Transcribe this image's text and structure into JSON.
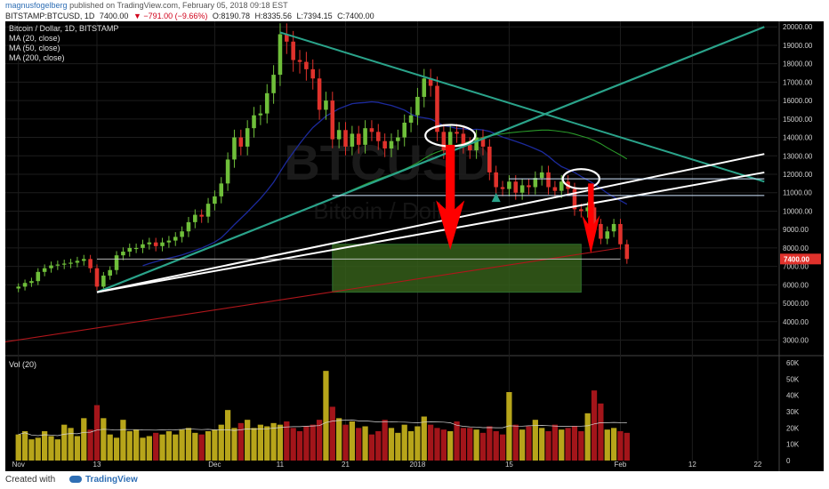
{
  "header": {
    "author": "magnusfogelberg",
    "published": "published on TradingView.com, February 05, 2018 09:18 EST"
  },
  "quote": {
    "symbol": "BITSTAMP:BTCUSD, 1D",
    "last": "7400.00",
    "change": "▼ −791.00 (−9.66%)",
    "o": "O:8190.78",
    "h": "H:8335.56",
    "l": "L:7394.15",
    "c": "C:7400.00"
  },
  "legend": {
    "title": "Bitcoin / Dollar, 1D, BITSTAMP",
    "ma20": "MA (20, close)",
    "ma50": "MA (50, close)",
    "ma200": "MA (200, close)",
    "vol": "Vol (20)"
  },
  "watermark": {
    "symbol": "BTCUSD",
    "name": "Bitcoin / Dollar"
  },
  "footer": {
    "made": "Created with",
    "brand": "TradingView"
  },
  "colors": {
    "background": "#000000",
    "up": "#6fbf3a",
    "down": "#e0322c",
    "vol_up": "#b7a51a",
    "vol_down": "#a3151a",
    "ma20": "#1c2a9c",
    "ma50": "#2a9a2a",
    "ma200": "#b0161b",
    "trendline_teal": "#2aa38a",
    "trendline_white": "#ffffff",
    "target_box": "#355e1a",
    "arrow_red": "#ff0000",
    "price_tag": "#e0322c"
  },
  "chart_data": {
    "type": "candlestick",
    "title": "Bitcoin / Dollar, 1D, BITSTAMP",
    "y_ticks": [
      3000,
      4000,
      5000,
      6000,
      7000,
      8000,
      9000,
      10000,
      11000,
      12000,
      13000,
      14000,
      15000,
      16000,
      17000,
      18000,
      19000,
      20000
    ],
    "ylim": [
      2300,
      20300
    ],
    "x_tick_labels": [
      {
        "label": "Nov",
        "day": 0
      },
      {
        "label": "13",
        "day": 12
      },
      {
        "label": "Dec",
        "day": 30
      },
      {
        "label": "11",
        "day": 40
      },
      {
        "label": "21",
        "day": 50
      },
      {
        "label": "2018",
        "day": 61
      },
      {
        "label": "15",
        "day": 75
      },
      {
        "label": "Feb",
        "day": 92
      },
      {
        "label": "12",
        "day": 103
      },
      {
        "label": "22",
        "day": 113
      }
    ],
    "xlim": [
      -2,
      116
    ],
    "last_price_label": "7400.00",
    "last_price": 7400,
    "closes": [
      5900,
      6100,
      6200,
      6700,
      6900,
      7050,
      7100,
      7150,
      7200,
      7300,
      7400,
      6900,
      5900,
      6500,
      6800,
      7600,
      7800,
      8000,
      8000,
      8200,
      8300,
      8100,
      8300,
      8400,
      8600,
      8900,
      9400,
      9800,
      9700,
      10400,
      10800,
      11500,
      12800,
      14000,
      13500,
      14500,
      15200,
      15300,
      16400,
      17400,
      19600,
      19200,
      18200,
      18100,
      17700,
      17200,
      15500,
      16000,
      13900,
      14400,
      13500,
      14200,
      13600,
      14500,
      14300,
      13800,
      13400,
      13800,
      14000,
      14800,
      15200,
      16200,
      17200,
      16800,
      14300,
      13300,
      14300,
      14200,
      13600,
      13300,
      14000,
      13500,
      12100,
      11300,
      11200,
      11600,
      11000,
      11400,
      11300,
      11800,
      12100,
      11300,
      11100,
      11600,
      11200,
      10100,
      10000,
      10200,
      9300,
      8500,
      8900,
      9300,
      8200,
      7400
    ],
    "volume": {
      "y_ticks": [
        0,
        10000,
        20000,
        30000,
        40000,
        50000,
        60000
      ],
      "y_tick_labels": [
        "0",
        "10K",
        "20K",
        "30K",
        "40K",
        "50K",
        "60K"
      ],
      "ylim": [
        0,
        60000
      ],
      "values": [
        16000,
        18000,
        13000,
        14000,
        18000,
        15000,
        13000,
        22000,
        20000,
        15000,
        26000,
        19000,
        34000,
        26000,
        16000,
        14000,
        25000,
        18000,
        19000,
        14000,
        15000,
        17000,
        16000,
        18000,
        16000,
        19000,
        20000,
        17000,
        16000,
        18000,
        19000,
        22000,
        31000,
        20000,
        23000,
        25000,
        20000,
        22000,
        21000,
        23000,
        22000,
        24000,
        20000,
        18000,
        21000,
        22000,
        25000,
        55000,
        33000,
        26000,
        22000,
        24000,
        20000,
        21000,
        16000,
        18000,
        25000,
        20000,
        17000,
        22000,
        18000,
        21000,
        27000,
        22000,
        20000,
        19000,
        18000,
        24000,
        20000,
        20000,
        19000,
        17000,
        21000,
        18000,
        16000,
        42000,
        22000,
        19000,
        21000,
        25000,
        20000,
        18000,
        22000,
        19000,
        20000,
        21000,
        18000,
        29000,
        43000,
        35000,
        19000,
        20000,
        18000,
        17000
      ]
    }
  }
}
